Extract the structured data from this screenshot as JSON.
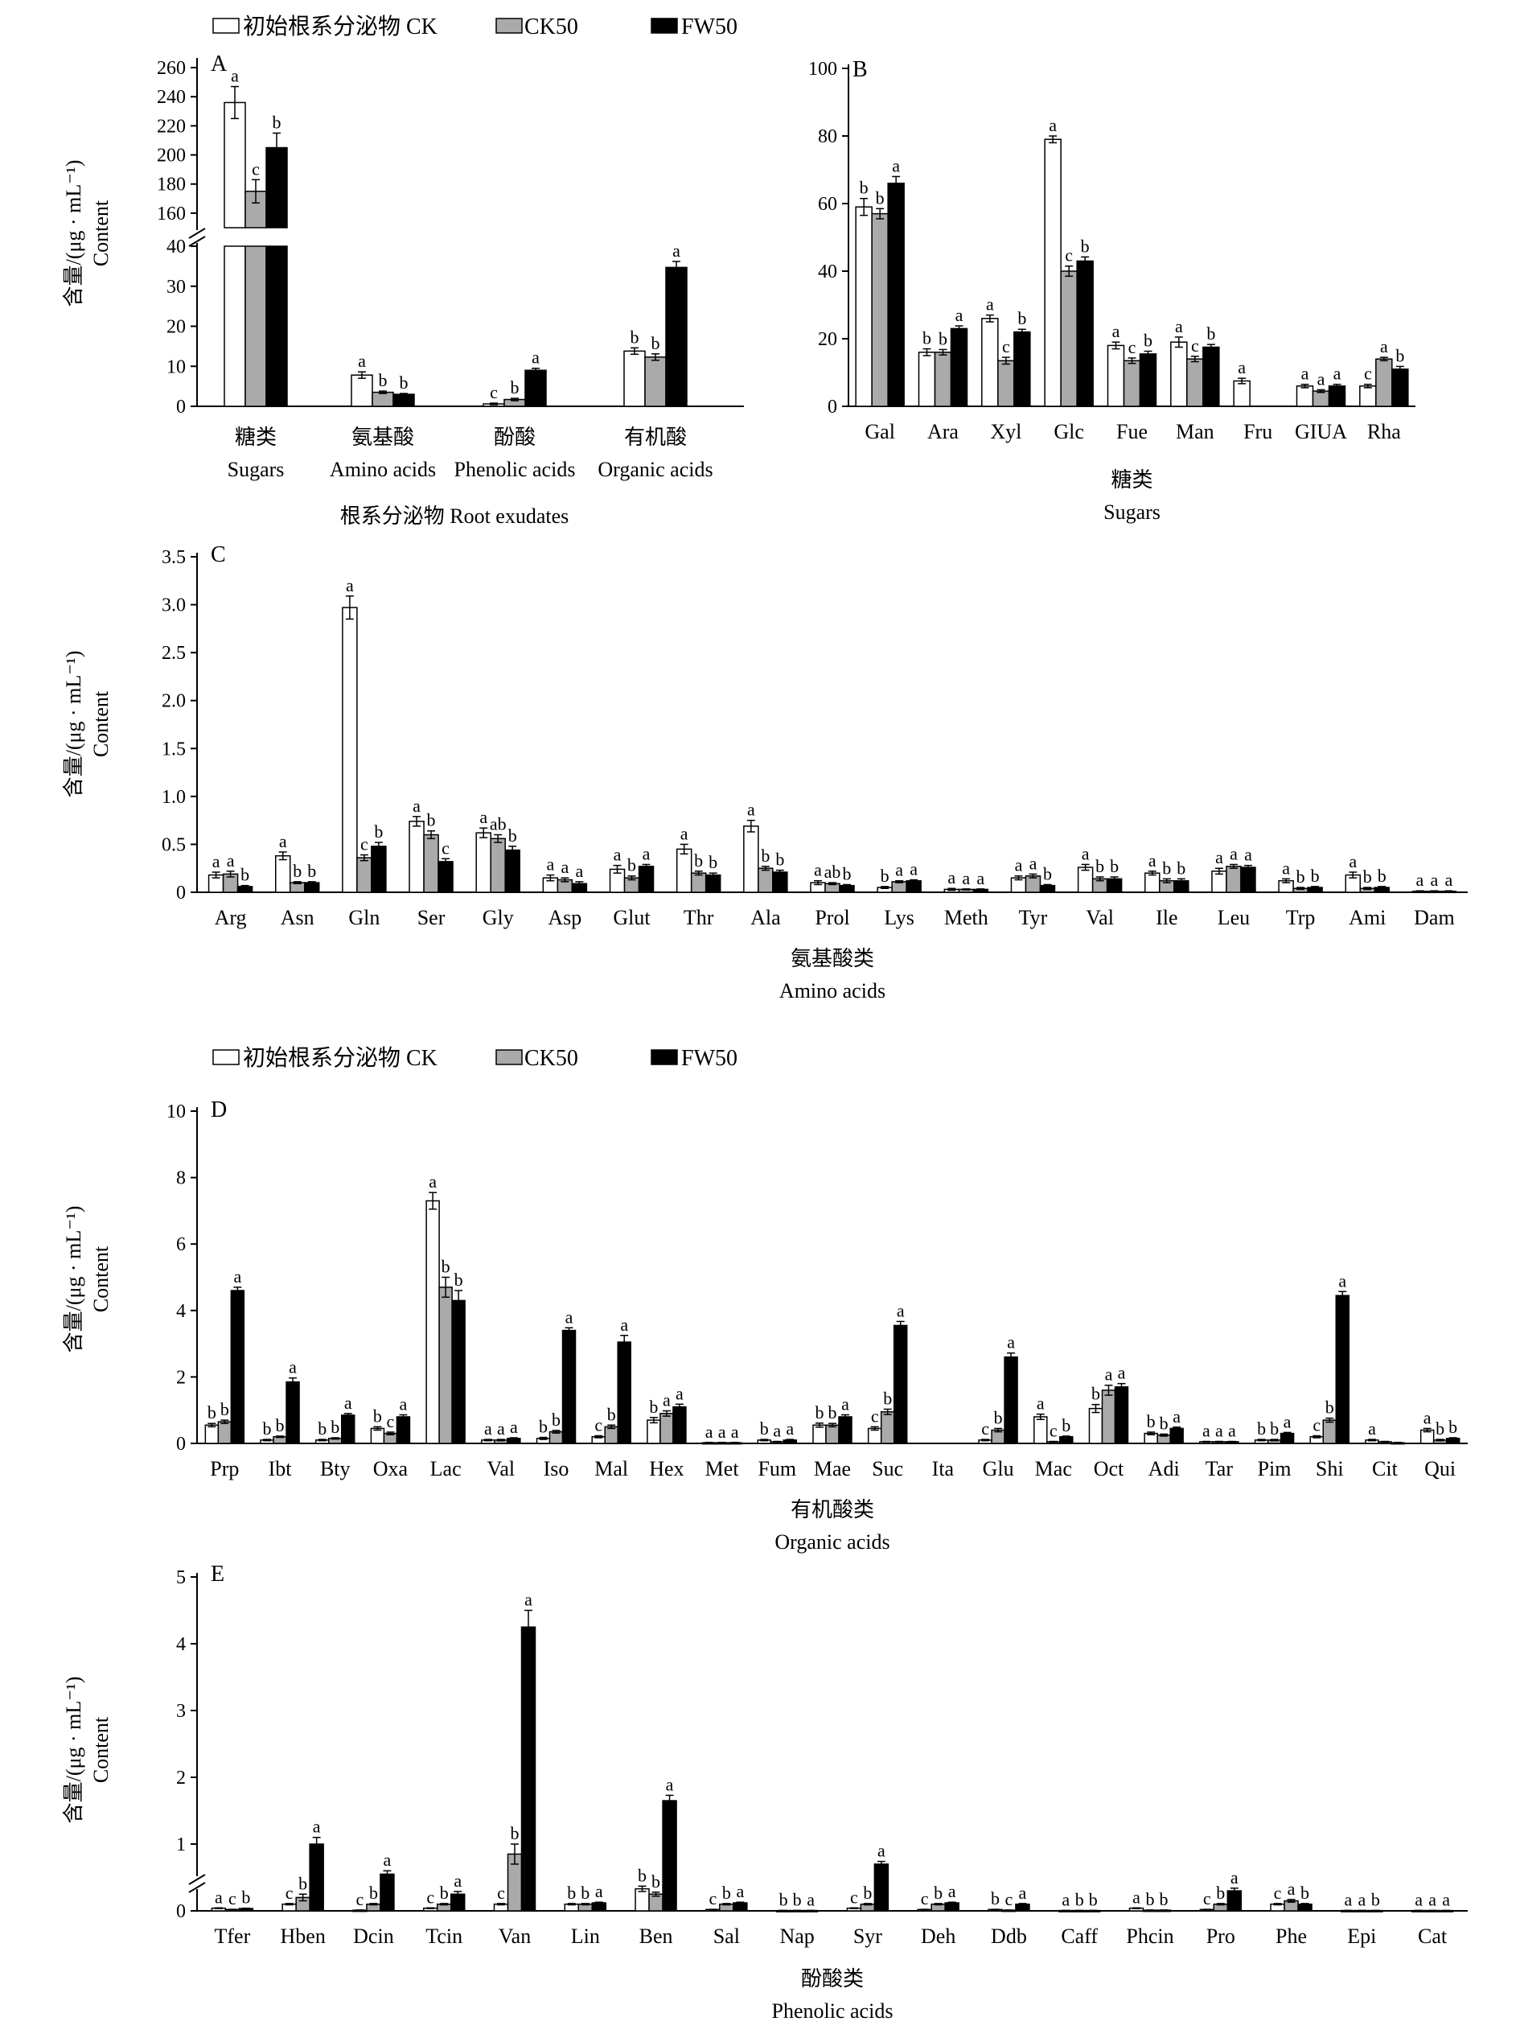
{
  "legend": [
    {
      "name": "初始根系分泌物 CK",
      "color": "#ffffff"
    },
    {
      "name": "CK50",
      "color": "#aaaaaa"
    },
    {
      "name": "FW50",
      "color": "#000000"
    }
  ],
  "chart_data": [
    {
      "panel": "A",
      "type": "bar",
      "axis_break": true,
      "ylabel": [
        "含量/(μg · mL⁻¹)",
        "Content"
      ],
      "xlabel": [
        "根系分泌物 Root exudates"
      ],
      "yticks_low": [
        0,
        10,
        20,
        30,
        40
      ],
      "yticks_high": [
        160,
        180,
        200,
        220,
        240,
        260
      ],
      "ylim_low": [
        0,
        40
      ],
      "ylim_high": [
        150,
        265
      ],
      "categories": [
        [
          "糖类",
          "Sugars"
        ],
        [
          "氨基酸",
          "Amino acids"
        ],
        [
          "酚酸",
          "Phenolic acids"
        ],
        [
          "有机酸",
          "Organic acids"
        ]
      ],
      "series": [
        {
          "values": [
            236,
            7.8,
            0.6,
            13.8
          ],
          "errors": [
            11,
            0.8,
            0.2,
            0.8
          ],
          "sig": [
            "a",
            "a",
            "c",
            "b"
          ]
        },
        {
          "values": [
            175,
            3.5,
            1.7,
            12.3
          ],
          "errors": [
            8,
            0.3,
            0.3,
            0.8
          ],
          "sig": [
            "c",
            "b",
            "b",
            "b"
          ]
        },
        {
          "values": [
            205,
            3.0,
            9.0,
            34.7
          ],
          "errors": [
            10,
            0.2,
            0.5,
            1.5
          ],
          "sig": [
            "b",
            "b",
            "a",
            "a"
          ]
        }
      ]
    },
    {
      "panel": "B",
      "type": "bar",
      "xlabel": [
        "糖类",
        "Sugars"
      ],
      "ylim": [
        0,
        100
      ],
      "yticks": [
        0,
        20,
        40,
        60,
        80,
        100
      ],
      "categories": [
        "Gal",
        "Ara",
        "Xyl",
        "Glc",
        "Fue",
        "Man",
        "Fru",
        "GIUA",
        "Rha"
      ],
      "series": [
        {
          "values": [
            59,
            16,
            26,
            79,
            18,
            19,
            7.5,
            6,
            6
          ],
          "errors": [
            2.5,
            1,
            1,
            1,
            1,
            1.5,
            0.8,
            0.5,
            0.5
          ],
          "sig": [
            "b",
            "b",
            "a",
            "a",
            "a",
            "a",
            "a",
            "a",
            "c"
          ]
        },
        {
          "values": [
            57,
            16,
            13.5,
            40,
            13.5,
            14,
            0,
            4.5,
            14
          ],
          "errors": [
            1.5,
            0.8,
            1,
            1.5,
            0.8,
            0.8,
            0,
            0.4,
            0.5
          ],
          "sig": [
            "b",
            "b",
            "c",
            "c",
            "c",
            "c",
            "",
            "a",
            "a"
          ]
        },
        {
          "values": [
            66,
            23,
            22,
            43,
            15.5,
            17.5,
            0,
            6,
            11
          ],
          "errors": [
            2,
            0.8,
            0.8,
            1.2,
            0.8,
            0.8,
            0,
            0.5,
            0.8
          ],
          "sig": [
            "a",
            "a",
            "b",
            "b",
            "b",
            "b",
            "",
            "a",
            "b"
          ]
        }
      ]
    },
    {
      "panel": "C",
      "type": "bar",
      "ylabel": [
        "含量/(μg · mL⁻¹)",
        "Content"
      ],
      "xlabel": [
        "氨基酸类",
        "Amino acids"
      ],
      "ylim": [
        0,
        3.5
      ],
      "yticks": [
        "0",
        "0.5",
        "1.0",
        "1.5",
        "2.0",
        "2.5",
        "3.0",
        "3.5"
      ],
      "categories": [
        "Arg",
        "Asn",
        "Gln",
        "Ser",
        "Gly",
        "Asp",
        "Glut",
        "Thr",
        "Ala",
        "Prol",
        "Lys",
        "Meth",
        "Tyr",
        "Val",
        "Ile",
        "Leu",
        "Trp",
        "Ami",
        "Dam"
      ],
      "series": [
        {
          "values": [
            0.18,
            0.38,
            2.97,
            0.74,
            0.62,
            0.15,
            0.24,
            0.45,
            0.69,
            0.1,
            0.05,
            0.03,
            0.15,
            0.26,
            0.2,
            0.22,
            0.12,
            0.18,
            0.01
          ],
          "errors": [
            0.03,
            0.04,
            0.12,
            0.05,
            0.05,
            0.03,
            0.04,
            0.05,
            0.06,
            0.02,
            0.01,
            0.01,
            0.02,
            0.03,
            0.02,
            0.03,
            0.02,
            0.03,
            0.005
          ],
          "sig": [
            "a",
            "a",
            "a",
            "a",
            "a",
            "a",
            "a",
            "a",
            "a",
            "a",
            "b",
            "a",
            "a",
            "a",
            "a",
            "a",
            "a",
            "a",
            "a"
          ]
        },
        {
          "values": [
            0.19,
            0.1,
            0.36,
            0.6,
            0.56,
            0.13,
            0.15,
            0.2,
            0.25,
            0.09,
            0.11,
            0.03,
            0.17,
            0.14,
            0.12,
            0.27,
            0.04,
            0.04,
            0.01
          ],
          "errors": [
            0.03,
            0.01,
            0.03,
            0.04,
            0.04,
            0.02,
            0.02,
            0.02,
            0.02,
            0.01,
            0.01,
            0.005,
            0.02,
            0.02,
            0.02,
            0.02,
            0.01,
            0.01,
            0.005
          ],
          "sig": [
            "a",
            "b",
            "c",
            "b",
            "ab",
            "a",
            "b",
            "b",
            "b",
            "ab",
            "a",
            "a",
            "a",
            "b",
            "b",
            "a",
            "b",
            "b",
            "a"
          ]
        },
        {
          "values": [
            0.06,
            0.1,
            0.48,
            0.32,
            0.44,
            0.09,
            0.27,
            0.18,
            0.21,
            0.07,
            0.12,
            0.03,
            0.07,
            0.14,
            0.12,
            0.26,
            0.05,
            0.05,
            0.01
          ],
          "errors": [
            0.01,
            0.01,
            0.04,
            0.03,
            0.04,
            0.02,
            0.02,
            0.02,
            0.02,
            0.01,
            0.01,
            0.005,
            0.01,
            0.02,
            0.02,
            0.02,
            0.01,
            0.01,
            0.005
          ],
          "sig": [
            "b",
            "b",
            "b",
            "c",
            "b",
            "a",
            "a",
            "b",
            "b",
            "b",
            "a",
            "a",
            "b",
            "b",
            "b",
            "a",
            "b",
            "b",
            "a"
          ]
        }
      ]
    },
    {
      "panel": "D",
      "type": "bar",
      "ylabel": [
        "含量/(μg · mL⁻¹)",
        "Content"
      ],
      "xlabel": [
        "有机酸类",
        "Organic acids"
      ],
      "ylim": [
        0,
        10
      ],
      "yticks": [
        0,
        2,
        4,
        6,
        8,
        10
      ],
      "categories": [
        "Prp",
        "Ibt",
        "Bty",
        "Oxa",
        "Lac",
        "Val",
        "Iso",
        "Mal",
        "Hex",
        "Met",
        "Fum",
        "Mae",
        "Suc",
        "Ita",
        "Glu",
        "Mac",
        "Oct",
        "Adi",
        "Tar",
        "Pim",
        "Shi",
        "Cit",
        "Qui"
      ],
      "series": [
        {
          "values": [
            0.55,
            0.1,
            0.1,
            0.45,
            7.3,
            0.1,
            0.15,
            0.2,
            0.7,
            0.02,
            0.1,
            0.55,
            0.45,
            0,
            0.1,
            0.8,
            1.05,
            0.3,
            0.05,
            0.1,
            0.2,
            0.1,
            0.4
          ],
          "errors": [
            0.05,
            0.02,
            0.02,
            0.05,
            0.25,
            0.02,
            0.03,
            0.03,
            0.08,
            0.01,
            0.02,
            0.06,
            0.05,
            0,
            0.02,
            0.08,
            0.12,
            0.04,
            0.01,
            0.02,
            0.03,
            0.02,
            0.05
          ],
          "sig": [
            "b",
            "b",
            "b",
            "b",
            "a",
            "a",
            "b",
            "c",
            "b",
            "a",
            "b",
            "b",
            "c",
            "",
            "c",
            "a",
            "b",
            "b",
            "a",
            "b",
            "c",
            "a",
            "a"
          ]
        },
        {
          "values": [
            0.65,
            0.2,
            0.15,
            0.3,
            4.7,
            0.1,
            0.35,
            0.5,
            0.9,
            0.02,
            0.05,
            0.55,
            0.95,
            0,
            0.4,
            0.05,
            1.6,
            0.25,
            0.05,
            0.1,
            0.7,
            0.05,
            0.1
          ],
          "errors": [
            0.05,
            0.02,
            0.02,
            0.04,
            0.3,
            0.02,
            0.04,
            0.05,
            0.08,
            0.01,
            0.01,
            0.05,
            0.08,
            0,
            0.05,
            0.01,
            0.15,
            0.03,
            0.01,
            0.02,
            0.06,
            0.01,
            0.02
          ],
          "sig": [
            "b",
            "b",
            "b",
            "c",
            "b",
            "a",
            "b",
            "b",
            "a",
            "a",
            "a",
            "b",
            "b",
            "",
            "b",
            "c",
            "a",
            "b",
            "a",
            "b",
            "b",
            "",
            "b"
          ]
        },
        {
          "values": [
            4.6,
            1.85,
            0.85,
            0.8,
            4.3,
            0.15,
            3.4,
            3.05,
            1.1,
            0.02,
            0.1,
            0.8,
            3.55,
            0,
            2.6,
            0.2,
            1.7,
            0.45,
            0.05,
            0.3,
            4.45,
            0.02,
            0.15
          ],
          "errors": [
            0.1,
            0.12,
            0.05,
            0.06,
            0.3,
            0.02,
            0.08,
            0.2,
            0.08,
            0.01,
            0.02,
            0.06,
            0.12,
            0,
            0.12,
            0.02,
            0.1,
            0.04,
            0.01,
            0.03,
            0.12,
            0.01,
            0.02
          ],
          "sig": [
            "a",
            "a",
            "a",
            "a",
            "b",
            "a",
            "a",
            "a",
            "a",
            "a",
            "a",
            "a",
            "a",
            "",
            "a",
            "b",
            "a",
            "a",
            "a",
            "a",
            "a",
            "",
            "b"
          ]
        }
      ]
    },
    {
      "panel": "E",
      "type": "bar",
      "axis_break": true,
      "ylabel": [
        "含量/(μg · mL⁻¹)",
        "Content"
      ],
      "xlabel": [
        "酚酸类",
        "Phenolic acids"
      ],
      "ylim": [
        0,
        5
      ],
      "yticks": [
        0,
        1,
        2,
        3,
        4,
        5
      ],
      "categories": [
        "Tfer",
        "Hben",
        "Dcin",
        "Tcin",
        "Van",
        "Lin",
        "Ben",
        "Sal",
        "Nap",
        "Syr",
        "Deh",
        "Ddb",
        "Caff",
        "Phcin",
        "Pro",
        "Phe",
        "Epi",
        "Cat"
      ],
      "series": [
        {
          "values": [
            0.04,
            0.1,
            0.01,
            0.04,
            0.1,
            0.1,
            0.33,
            0.02,
            0.005,
            0.04,
            0.02,
            0.02,
            0.005,
            0.04,
            0.02,
            0.1,
            0.005,
            0.005
          ],
          "errors": [
            0.005,
            0.01,
            0.003,
            0.005,
            0.01,
            0.01,
            0.04,
            0.003,
            0.002,
            0.005,
            0.003,
            0.003,
            0.002,
            0.005,
            0.003,
            0.01,
            0.002,
            0.002
          ],
          "sig": [
            "a",
            "c",
            "c",
            "c",
            "c",
            "b",
            "b",
            "c",
            "b",
            "c",
            "c",
            "b",
            "a",
            "a",
            "c",
            "c",
            "a",
            "a"
          ]
        },
        {
          "values": [
            0.02,
            0.2,
            0.1,
            0.1,
            0.85,
            0.1,
            0.25,
            0.1,
            0.005,
            0.1,
            0.1,
            0.01,
            0.005,
            0.01,
            0.1,
            0.15,
            0.005,
            0.005
          ],
          "errors": [
            0.003,
            0.05,
            0.01,
            0.01,
            0.15,
            0.01,
            0.03,
            0.01,
            0.002,
            0.01,
            0.01,
            0.003,
            0.002,
            0.003,
            0.01,
            0.02,
            0.002,
            0.002
          ],
          "sig": [
            "c",
            "b",
            "b",
            "b",
            "b",
            "b",
            "b",
            "b",
            "b",
            "b",
            "b",
            "c",
            "b",
            "b",
            "b",
            "a",
            "a",
            "a"
          ]
        },
        {
          "values": [
            0.035,
            1.0,
            0.55,
            0.25,
            4.25,
            0.12,
            1.65,
            0.12,
            0.005,
            0.7,
            0.12,
            0.1,
            0.005,
            0.01,
            0.3,
            0.1,
            0.005,
            0.005
          ],
          "errors": [
            0.005,
            0.1,
            0.05,
            0.04,
            0.25,
            0.01,
            0.08,
            0.01,
            0.002,
            0.04,
            0.01,
            0.01,
            0.002,
            0.003,
            0.04,
            0.01,
            0.002,
            0.002
          ],
          "sig": [
            "b",
            "a",
            "a",
            "a",
            "a",
            "a",
            "a",
            "a",
            "a",
            "a",
            "a",
            "a",
            "b",
            "b",
            "a",
            "b",
            "b",
            "a"
          ]
        }
      ]
    }
  ]
}
